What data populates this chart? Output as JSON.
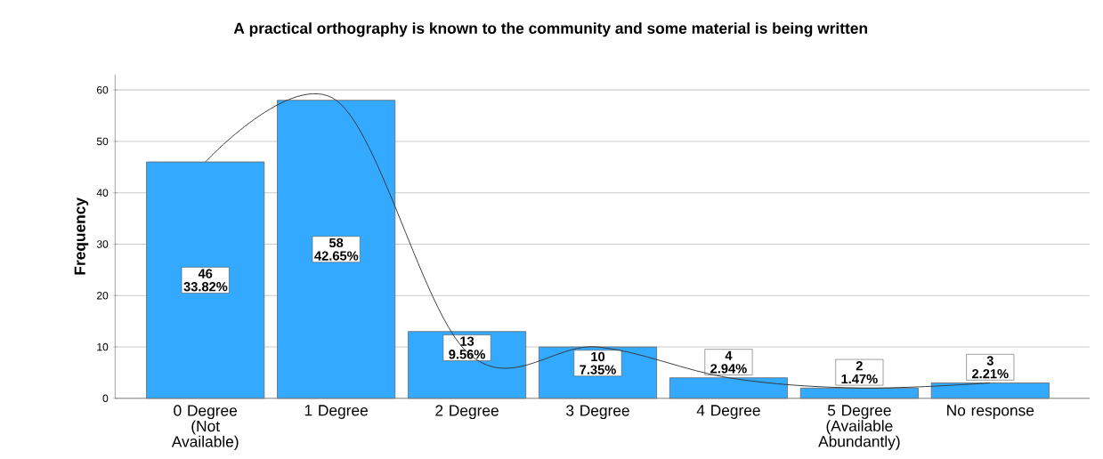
{
  "chart_data": {
    "type": "bar",
    "title": "A practical orthography is known to the community and some material is being written",
    "ylabel": "Frequency",
    "categories": [
      "0 Degree (Not Available)",
      "1 Degree",
      "2 Degree",
      "3 Degree",
      "4 Degree",
      "5 Degree (Available Abundantly)",
      "No response"
    ],
    "series": [
      {
        "color": "#33aaff",
        "values": [
          46,
          58,
          13,
          10,
          4,
          2,
          3
        ],
        "value_labels": [
          "46 33.82%",
          "58 42.65%",
          "13 9.56%",
          "10 7.35%",
          "4 2.94%",
          "2 1.47%",
          "3 2.21%"
        ]
      },
      {
        "type": "line",
        "color": "#333333",
        "values": [
          46,
          58,
          9,
          10,
          4,
          2,
          3
        ]
      }
    ],
    "ylim": [
      0,
      63
    ],
    "yticks": [
      0,
      10,
      20,
      30,
      40,
      50,
      60
    ],
    "grid": "y",
    "marker": "none",
    "line_style": "solid"
  }
}
